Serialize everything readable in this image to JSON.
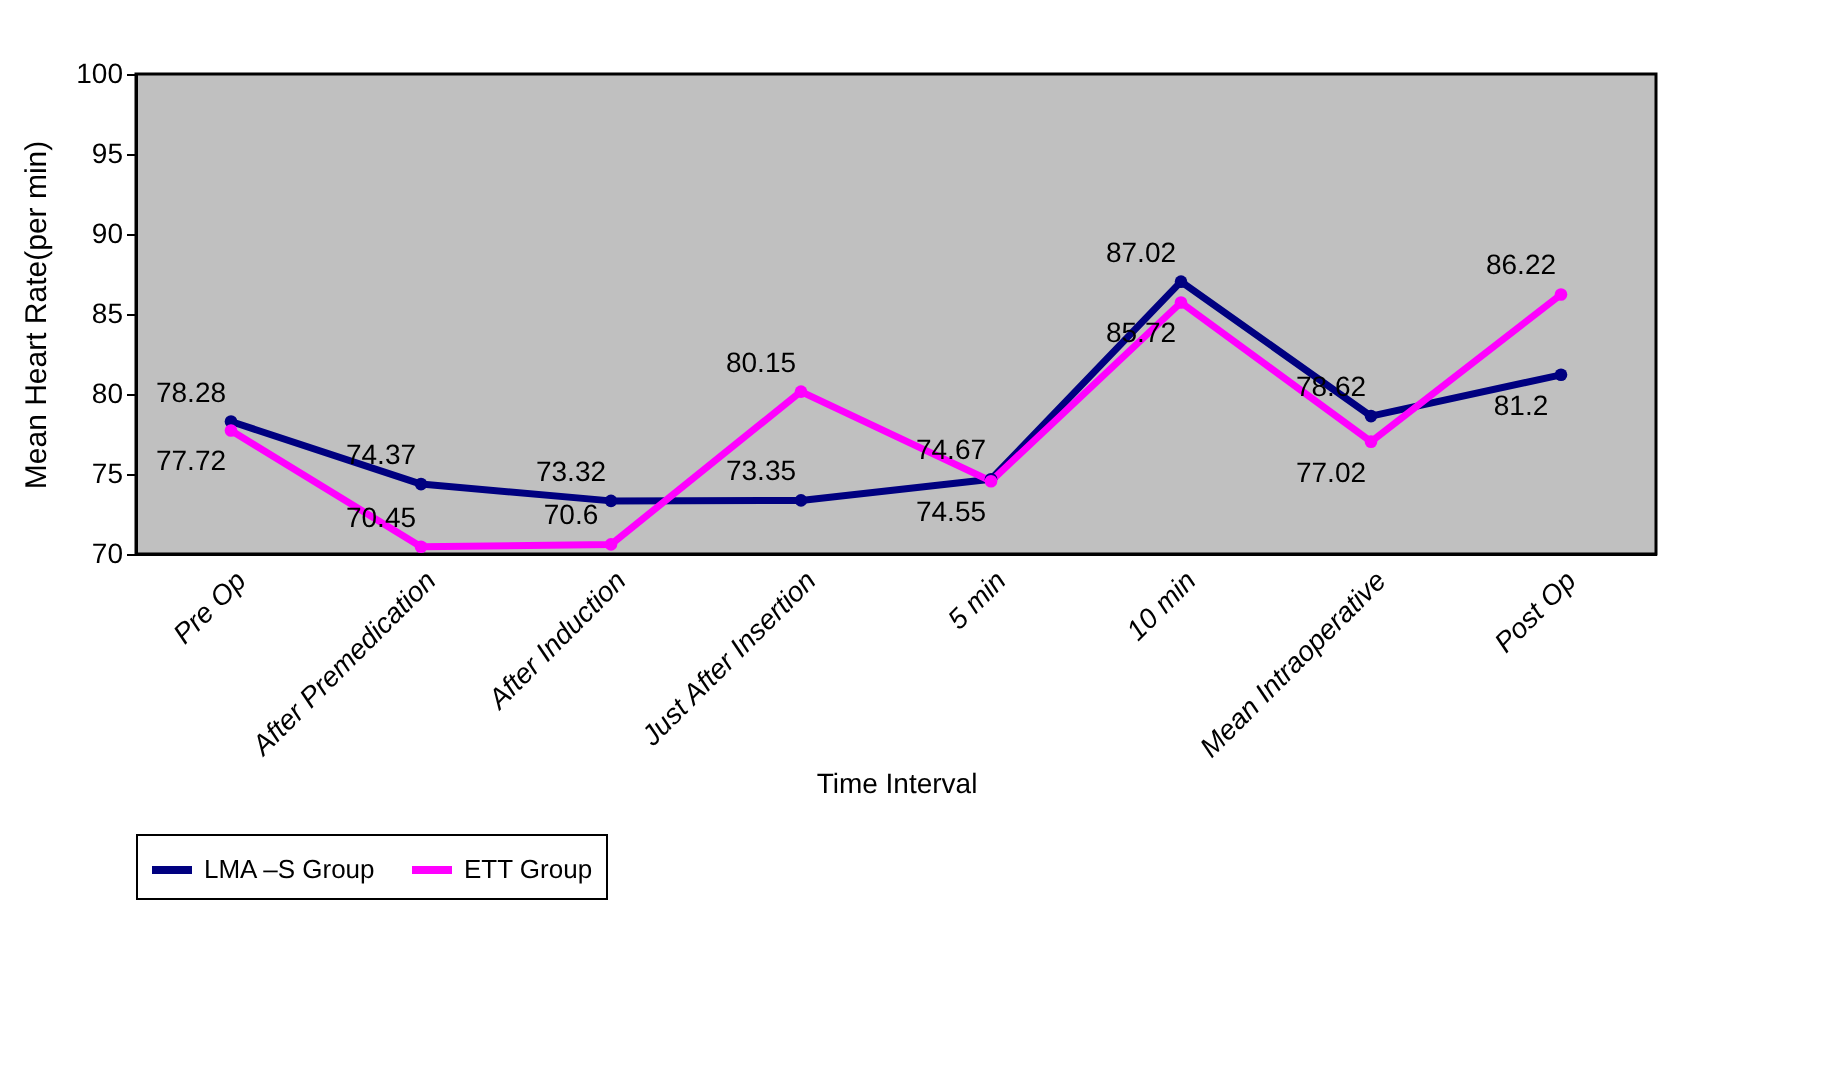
{
  "chart_data": {
    "type": "line",
    "xlabel": "Time Interval",
    "ylabel": "Mean Heart Rate(per min)",
    "categories": [
      "Pre Op",
      "After Premedication",
      "After Induction",
      "Just After Insertion",
      "5 min",
      "10 min",
      "Mean Intraoperative",
      "Post Op"
    ],
    "series": [
      {
        "name": "LMA –S Group",
        "color": "#000080",
        "values": [
          78.28,
          74.37,
          73.32,
          73.35,
          74.67,
          87.02,
          78.62,
          81.2
        ]
      },
      {
        "name": "ETT Group",
        "color": "#ff00ff",
        "values": [
          77.72,
          70.45,
          70.6,
          80.15,
          74.55,
          85.72,
          77.02,
          86.22
        ]
      }
    ],
    "ylim": [
      70,
      100
    ],
    "yticks": [
      70,
      75,
      80,
      85,
      90,
      95,
      100
    ],
    "grid": false,
    "legend": "bottom",
    "marker": "circle",
    "line_style": "solid",
    "data_labels": true
  }
}
